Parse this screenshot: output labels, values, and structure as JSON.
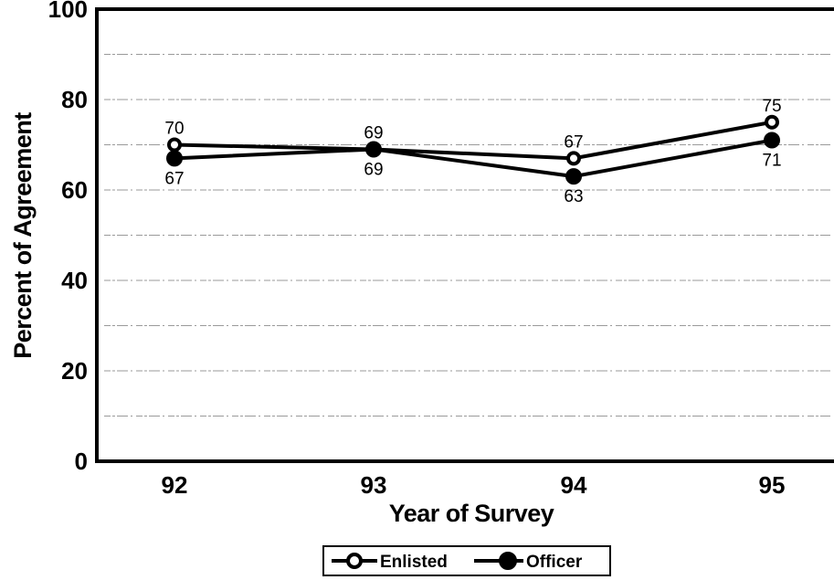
{
  "chart_data": {
    "type": "line",
    "title": "",
    "xlabel": "Year of Survey",
    "ylabel": "Percent of Agreement",
    "categories": [
      "92",
      "93",
      "94",
      "95"
    ],
    "yticks": [
      "0",
      "20",
      "40",
      "60",
      "80",
      "100"
    ],
    "ylim": [
      0,
      100
    ],
    "grid": true,
    "gridlines": [
      10,
      20,
      30,
      40,
      50,
      60,
      70,
      80,
      90
    ],
    "legend_position": "bottom-center",
    "series": [
      {
        "name": "Enlisted",
        "values": [
          70,
          69,
          67,
          75
        ],
        "labels": [
          "70",
          "69",
          "67",
          "75"
        ],
        "label_position": "above",
        "marker": "open-circle",
        "color": "#000000"
      },
      {
        "name": "Officer",
        "values": [
          67,
          69,
          63,
          71
        ],
        "labels": [
          "67",
          "69",
          "63",
          "71"
        ],
        "label_position": "below",
        "marker": "filled-circle",
        "color": "#000000"
      }
    ]
  }
}
